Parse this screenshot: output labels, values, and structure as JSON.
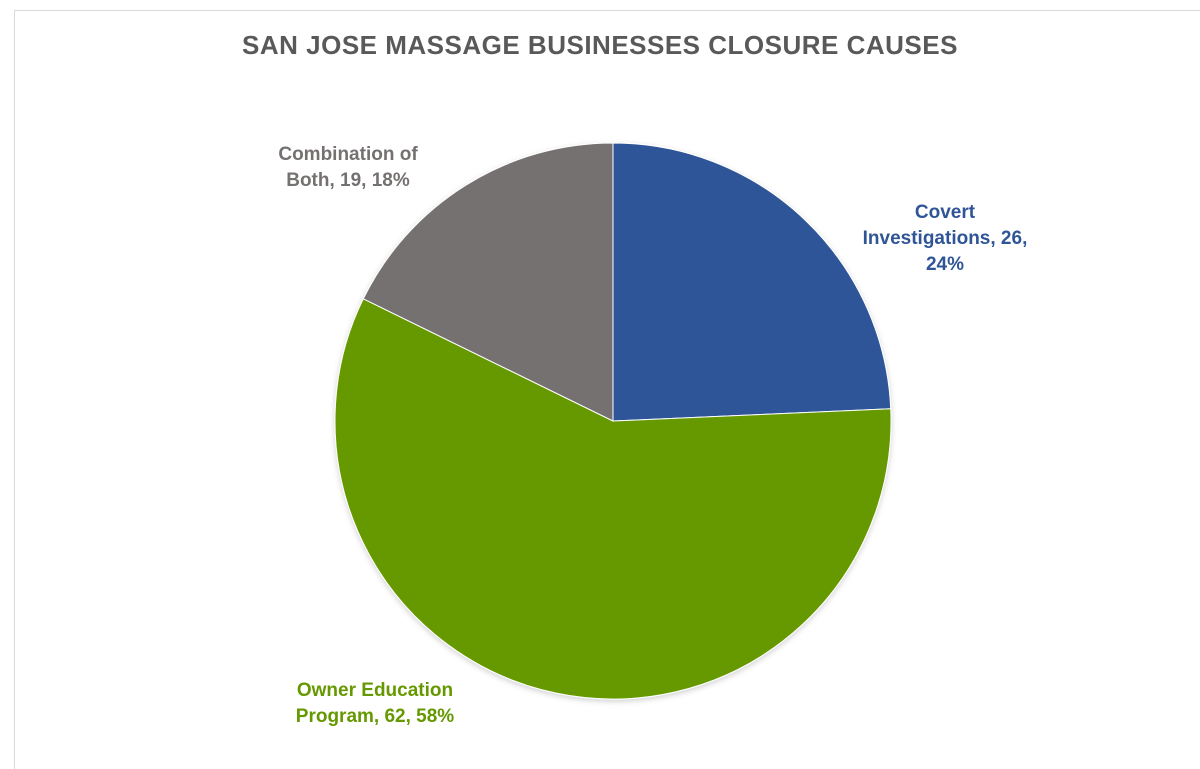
{
  "chart_data": {
    "type": "pie",
    "title": "SAN JOSE MASSAGE BUSINESSES CLOSURE CAUSES",
    "slices": [
      {
        "label": "Covert Investigations",
        "value": 26,
        "percent": "24%",
        "color": "#2f5597",
        "data_label_lines": [
          "Covert",
          "Investigations, 26,",
          "24%"
        ]
      },
      {
        "label": "Owner Education Program",
        "value": 62,
        "percent": "58%",
        "color": "#669900",
        "data_label_lines": [
          "Owner Education",
          "Program, 62, 58%"
        ]
      },
      {
        "label": "Combination of Both",
        "value": 19,
        "percent": "18%",
        "color": "#767171",
        "data_label_lines": [
          "Combination of",
          "Both, 19, 18%"
        ]
      }
    ],
    "start_angle": "12 o'clock",
    "direction": "clockwise",
    "legend": "none"
  }
}
